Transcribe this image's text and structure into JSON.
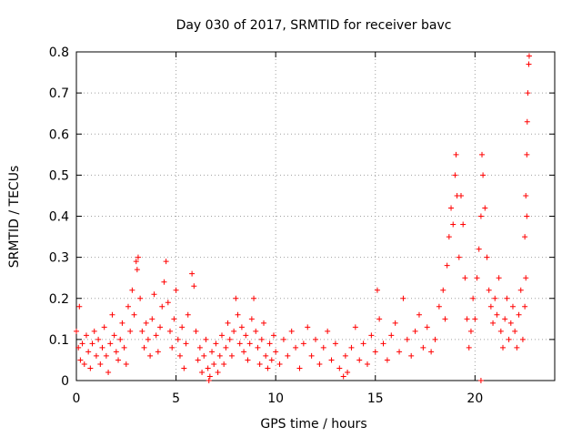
{
  "chart_data": {
    "type": "scatter",
    "title": "Day 030 of 2017, SRMTID for receiver bavc",
    "xlabel": "GPS time / hours",
    "ylabel": "SRMTID / TECUs",
    "xlim": [
      0,
      24
    ],
    "ylim": [
      0,
      0.8
    ],
    "xticks": [
      0,
      5,
      10,
      15,
      20
    ],
    "yticks": [
      0,
      0.1,
      0.2,
      0.3,
      0.4,
      0.5,
      0.6,
      0.7,
      0.8
    ],
    "grid": true,
    "marker": "plus",
    "color": "#ff0000",
    "series": [
      {
        "name": "SRMTID",
        "points": [
          [
            0.0,
            0.12
          ],
          [
            0.1,
            0.08
          ],
          [
            0.15,
            0.18
          ],
          [
            0.2,
            0.05
          ],
          [
            0.3,
            0.09
          ],
          [
            0.4,
            0.04
          ],
          [
            0.5,
            0.11
          ],
          [
            0.6,
            0.07
          ],
          [
            0.7,
            0.03
          ],
          [
            0.8,
            0.09
          ],
          [
            0.9,
            0.12
          ],
          [
            1.0,
            0.06
          ],
          [
            1.1,
            0.1
          ],
          [
            1.2,
            0.04
          ],
          [
            1.3,
            0.08
          ],
          [
            1.4,
            0.13
          ],
          [
            1.5,
            0.06
          ],
          [
            1.6,
            0.02
          ],
          [
            1.7,
            0.09
          ],
          [
            1.8,
            0.16
          ],
          [
            1.9,
            0.11
          ],
          [
            2.0,
            0.07
          ],
          [
            2.1,
            0.05
          ],
          [
            2.2,
            0.1
          ],
          [
            2.3,
            0.14
          ],
          [
            2.4,
            0.08
          ],
          [
            2.5,
            0.04
          ],
          [
            2.6,
            0.18
          ],
          [
            2.7,
            0.12
          ],
          [
            2.8,
            0.22
          ],
          [
            2.9,
            0.16
          ],
          [
            3.0,
            0.29
          ],
          [
            3.05,
            0.27
          ],
          [
            3.1,
            0.3
          ],
          [
            3.2,
            0.2
          ],
          [
            3.3,
            0.12
          ],
          [
            3.4,
            0.08
          ],
          [
            3.5,
            0.14
          ],
          [
            3.6,
            0.1
          ],
          [
            3.7,
            0.06
          ],
          [
            3.8,
            0.15
          ],
          [
            3.9,
            0.21
          ],
          [
            4.0,
            0.11
          ],
          [
            4.1,
            0.07
          ],
          [
            4.2,
            0.13
          ],
          [
            4.3,
            0.18
          ],
          [
            4.4,
            0.24
          ],
          [
            4.5,
            0.29
          ],
          [
            4.6,
            0.19
          ],
          [
            4.7,
            0.12
          ],
          [
            4.8,
            0.08
          ],
          [
            4.9,
            0.15
          ],
          [
            5.0,
            0.22
          ],
          [
            5.1,
            0.1
          ],
          [
            5.2,
            0.06
          ],
          [
            5.3,
            0.13
          ],
          [
            5.4,
            0.03
          ],
          [
            5.5,
            0.09
          ],
          [
            5.6,
            0.16
          ],
          [
            5.8,
            0.26
          ],
          [
            5.9,
            0.23
          ],
          [
            6.0,
            0.12
          ],
          [
            6.1,
            0.05
          ],
          [
            6.2,
            0.08
          ],
          [
            6.3,
            0.02
          ],
          [
            6.4,
            0.06
          ],
          [
            6.5,
            0.1
          ],
          [
            6.6,
            0.03
          ],
          [
            6.7,
            0.01
          ],
          [
            6.8,
            0.07
          ],
          [
            6.9,
            0.04
          ],
          [
            7.0,
            0.09
          ],
          [
            7.1,
            0.02
          ],
          [
            7.2,
            0.06
          ],
          [
            7.3,
            0.11
          ],
          [
            7.4,
            0.04
          ],
          [
            7.5,
            0.08
          ],
          [
            7.6,
            0.14
          ],
          [
            7.7,
            0.1
          ],
          [
            7.8,
            0.06
          ],
          [
            7.9,
            0.12
          ],
          [
            8.0,
            0.2
          ],
          [
            8.1,
            0.16
          ],
          [
            8.2,
            0.09
          ],
          [
            8.3,
            0.13
          ],
          [
            8.4,
            0.07
          ],
          [
            8.5,
            0.11
          ],
          [
            8.6,
            0.05
          ],
          [
            8.7,
            0.09
          ],
          [
            8.8,
            0.15
          ],
          [
            8.9,
            0.2
          ],
          [
            9.0,
            0.12
          ],
          [
            9.1,
            0.08
          ],
          [
            9.2,
            0.04
          ],
          [
            9.3,
            0.1
          ],
          [
            9.4,
            0.14
          ],
          [
            9.5,
            0.06
          ],
          [
            9.6,
            0.03
          ],
          [
            9.7,
            0.09
          ],
          [
            9.8,
            0.05
          ],
          [
            9.9,
            0.11
          ],
          [
            10.0,
            0.07
          ],
          [
            10.2,
            0.04
          ],
          [
            10.4,
            0.1
          ],
          [
            10.6,
            0.06
          ],
          [
            10.8,
            0.12
          ],
          [
            11.0,
            0.08
          ],
          [
            11.2,
            0.03
          ],
          [
            11.4,
            0.09
          ],
          [
            11.6,
            0.13
          ],
          [
            11.8,
            0.06
          ],
          [
            12.0,
            0.1
          ],
          [
            12.2,
            0.04
          ],
          [
            12.4,
            0.08
          ],
          [
            12.6,
            0.12
          ],
          [
            12.8,
            0.05
          ],
          [
            13.0,
            0.09
          ],
          [
            13.2,
            0.03
          ],
          [
            13.4,
            0.01
          ],
          [
            13.5,
            0.06
          ],
          [
            13.6,
            0.02
          ],
          [
            13.8,
            0.08
          ],
          [
            14.0,
            0.13
          ],
          [
            14.2,
            0.05
          ],
          [
            14.4,
            0.09
          ],
          [
            14.6,
            0.04
          ],
          [
            14.8,
            0.11
          ],
          [
            15.0,
            0.07
          ],
          [
            15.1,
            0.22
          ],
          [
            15.2,
            0.15
          ],
          [
            15.4,
            0.09
          ],
          [
            15.6,
            0.05
          ],
          [
            15.8,
            0.11
          ],
          [
            16.0,
            0.14
          ],
          [
            16.2,
            0.07
          ],
          [
            16.4,
            0.2
          ],
          [
            16.6,
            0.1
          ],
          [
            16.8,
            0.06
          ],
          [
            17.0,
            0.12
          ],
          [
            17.2,
            0.16
          ],
          [
            17.4,
            0.08
          ],
          [
            17.6,
            0.13
          ],
          [
            17.8,
            0.07
          ],
          [
            18.0,
            0.1
          ],
          [
            18.2,
            0.18
          ],
          [
            18.4,
            0.22
          ],
          [
            18.5,
            0.15
          ],
          [
            18.6,
            0.28
          ],
          [
            18.7,
            0.35
          ],
          [
            18.8,
            0.42
          ],
          [
            18.9,
            0.38
          ],
          [
            19.0,
            0.5
          ],
          [
            19.05,
            0.55
          ],
          [
            19.1,
            0.45
          ],
          [
            19.2,
            0.3
          ],
          [
            19.3,
            0.45
          ],
          [
            19.4,
            0.38
          ],
          [
            19.5,
            0.25
          ],
          [
            19.6,
            0.15
          ],
          [
            19.7,
            0.08
          ],
          [
            19.8,
            0.12
          ],
          [
            19.9,
            0.2
          ],
          [
            20.0,
            0.15
          ],
          [
            20.1,
            0.25
          ],
          [
            20.2,
            0.32
          ],
          [
            20.3,
            0.4
          ],
          [
            20.35,
            0.55
          ],
          [
            20.4,
            0.5
          ],
          [
            20.5,
            0.42
          ],
          [
            20.6,
            0.3
          ],
          [
            20.7,
            0.22
          ],
          [
            20.8,
            0.18
          ],
          [
            20.9,
            0.14
          ],
          [
            21.0,
            0.2
          ],
          [
            21.1,
            0.16
          ],
          [
            21.2,
            0.25
          ],
          [
            21.3,
            0.12
          ],
          [
            21.4,
            0.08
          ],
          [
            21.5,
            0.15
          ],
          [
            21.6,
            0.2
          ],
          [
            21.7,
            0.1
          ],
          [
            21.8,
            0.14
          ],
          [
            21.9,
            0.18
          ],
          [
            22.0,
            0.12
          ],
          [
            22.1,
            0.08
          ],
          [
            22.2,
            0.16
          ],
          [
            22.3,
            0.22
          ],
          [
            22.4,
            0.1
          ],
          [
            22.5,
            0.35
          ],
          [
            22.55,
            0.45
          ],
          [
            22.6,
            0.55
          ],
          [
            22.62,
            0.63
          ],
          [
            22.65,
            0.7
          ],
          [
            22.7,
            0.77
          ],
          [
            22.72,
            0.79
          ],
          [
            22.6,
            0.4
          ],
          [
            22.55,
            0.25
          ],
          [
            22.5,
            0.18
          ],
          [
            20.3,
            0.0
          ],
          [
            6.65,
            0.0
          ]
        ]
      }
    ]
  }
}
